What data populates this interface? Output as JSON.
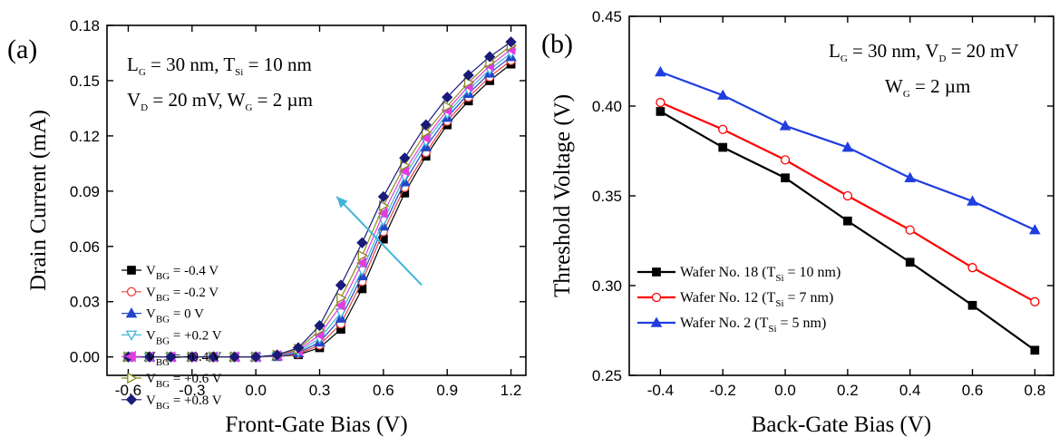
{
  "chart_data": [
    {
      "type": "line",
      "panel_label": "(a)",
      "xlabel": "Front-Gate Bias (V)",
      "ylabel": "Drain Current (mA)",
      "xlim": [
        -0.7,
        1.27
      ],
      "ylim": [
        -0.01,
        0.18
      ],
      "xticks": [
        -0.6,
        -0.3,
        0.0,
        0.3,
        0.6,
        0.9,
        1.2
      ],
      "xtick_labels": [
        "-0.6",
        "-0.3",
        "0.0",
        "0.3",
        "0.6",
        "0.9",
        "1.2"
      ],
      "yticks": [
        0.0,
        0.03,
        0.06,
        0.09,
        0.12,
        0.15,
        0.18
      ],
      "ytick_labels": [
        "0.00",
        "0.03",
        "0.06",
        "0.09",
        "0.12",
        "0.15",
        "0.18"
      ],
      "annotations": [
        {
          "main": "L",
          "sub": "G",
          "rest": " = 30 nm, T",
          "sub2": "Si",
          "rest2": " = 10 nm"
        },
        {
          "main": "V",
          "sub": "D",
          "rest": " = 20 mV, W",
          "sub2": "G",
          "rest2": " = 2 µm"
        }
      ],
      "arrow": {
        "from": [
          0.78,
          0.039
        ],
        "to": [
          0.38,
          0.087
        ],
        "color": "#3fb4d8"
      },
      "legend_position": "left-center",
      "x": [
        -0.6,
        -0.5,
        -0.4,
        -0.3,
        -0.2,
        -0.1,
        0.0,
        0.1,
        0.2,
        0.3,
        0.4,
        0.5,
        0.6,
        0.7,
        0.8,
        0.9,
        1.0,
        1.1,
        1.2
      ],
      "series": [
        {
          "name_main": "V",
          "name_sub": "BG",
          "name_rest": " = -0.4 V",
          "color": "#000000",
          "marker": "square-filled",
          "values": [
            0,
            0,
            0,
            0,
            0,
            0,
            0,
            0.0002,
            0.0012,
            0.005,
            0.015,
            0.037,
            0.064,
            0.089,
            0.109,
            0.126,
            0.139,
            0.15,
            0.159
          ]
        },
        {
          "name_main": "V",
          "name_sub": "BG",
          "name_rest": " = -0.2 V",
          "color": "#e8453c",
          "marker": "circle-open",
          "values": [
            0,
            0,
            0,
            0,
            0,
            0,
            0,
            0.0003,
            0.0017,
            0.0065,
            0.018,
            0.041,
            0.068,
            0.092,
            0.111,
            0.128,
            0.141,
            0.152,
            0.161
          ]
        },
        {
          "name_main": "V",
          "name_sub": "BG",
          "name_rest": " = 0 V",
          "color": "#2346c8",
          "marker": "triangle-up-filled",
          "values": [
            0,
            0,
            0,
            0,
            0,
            0,
            0,
            0.0004,
            0.0022,
            0.008,
            0.021,
            0.044,
            0.071,
            0.095,
            0.114,
            0.13,
            0.143,
            0.154,
            0.163
          ]
        },
        {
          "name_main": "V",
          "name_sub": "BG",
          "name_rest": " = +0.2 V",
          "color": "#3fb4d8",
          "marker": "triangle-down-open",
          "values": [
            0,
            0,
            0,
            0,
            0,
            0,
            0,
            0.0005,
            0.0028,
            0.01,
            0.024,
            0.047,
            0.074,
            0.098,
            0.117,
            0.132,
            0.145,
            0.156,
            0.165
          ]
        },
        {
          "name_main": "V",
          "name_sub": "BG",
          "name_rest": " = +0.4 V",
          "color": "#e03ee0",
          "marker": "triangle-left-filled",
          "values": [
            0,
            0,
            0,
            0,
            0,
            0,
            0,
            0.0007,
            0.0035,
            0.012,
            0.028,
            0.051,
            0.078,
            0.101,
            0.119,
            0.134,
            0.147,
            0.158,
            0.167
          ]
        },
        {
          "name_main": "V",
          "name_sub": "BG",
          "name_rest": " = +0.6 V",
          "color": "#8a8a1e",
          "marker": "triangle-right-open",
          "values": [
            0,
            0,
            0,
            0,
            0,
            0,
            0,
            0.0009,
            0.0042,
            0.0145,
            0.032,
            0.055,
            0.082,
            0.104,
            0.122,
            0.136,
            0.149,
            0.16,
            0.169
          ]
        },
        {
          "name_main": "V",
          "name_sub": "BG",
          "name_rest": " = +0.8 V",
          "color": "#1a1a7a",
          "marker": "diamond-filled",
          "values": [
            0,
            0,
            0,
            0,
            0,
            0,
            0,
            0.0011,
            0.005,
            0.017,
            0.039,
            0.062,
            0.087,
            0.108,
            0.126,
            0.141,
            0.153,
            0.163,
            0.171
          ]
        }
      ]
    },
    {
      "type": "line",
      "panel_label": "(b)",
      "xlabel": "Back-Gate Bias (V)",
      "ylabel": "Threshold Voltage (V)",
      "xlim": [
        -0.5,
        0.86
      ],
      "ylim": [
        0.25,
        0.45
      ],
      "xticks": [
        -0.4,
        -0.2,
        0.0,
        0.2,
        0.4,
        0.6,
        0.8
      ],
      "xtick_labels": [
        "-0.4",
        "-0.2",
        "0.0",
        "0.2",
        "0.4",
        "0.6",
        "0.8"
      ],
      "yticks": [
        0.25,
        0.3,
        0.35,
        0.4,
        0.45
      ],
      "ytick_labels": [
        "0.25",
        "0.30",
        "0.35",
        "0.40",
        "0.45"
      ],
      "annotations": [
        {
          "main": "L",
          "sub": "G",
          "rest": " = 30 nm, V",
          "sub2": "D",
          "rest2": " = 20 mV"
        },
        {
          "main": "W",
          "sub": "G",
          "rest": " = 2 µm",
          "sub2": "",
          "rest2": ""
        }
      ],
      "legend_position": "bottom-left",
      "x": [
        -0.4,
        -0.2,
        0.0,
        0.2,
        0.4,
        0.6,
        0.8
      ],
      "series": [
        {
          "name_main": "Wafer No. 18 (T",
          "name_sub": "Si",
          "name_rest": " = 10 nm)",
          "color": "#000000",
          "marker": "square-filled",
          "values": [
            0.397,
            0.377,
            0.36,
            0.336,
            0.313,
            0.289,
            0.264
          ]
        },
        {
          "name_main": "Wafer No. 12 (T",
          "name_sub": "Si",
          "name_rest": " = 7 nm)",
          "color": "#ff0000",
          "marker": "circle-open",
          "values": [
            0.402,
            0.387,
            0.37,
            0.35,
            0.331,
            0.31,
            0.291
          ]
        },
        {
          "name_main": "Wafer No.  2 (T",
          "name_sub": "Si",
          "name_rest": " = 5 nm)",
          "color": "#1f3ee0",
          "marker": "triangle-up-filled",
          "values": [
            0.419,
            0.406,
            0.389,
            0.377,
            0.36,
            0.347,
            0.331
          ]
        }
      ]
    }
  ]
}
